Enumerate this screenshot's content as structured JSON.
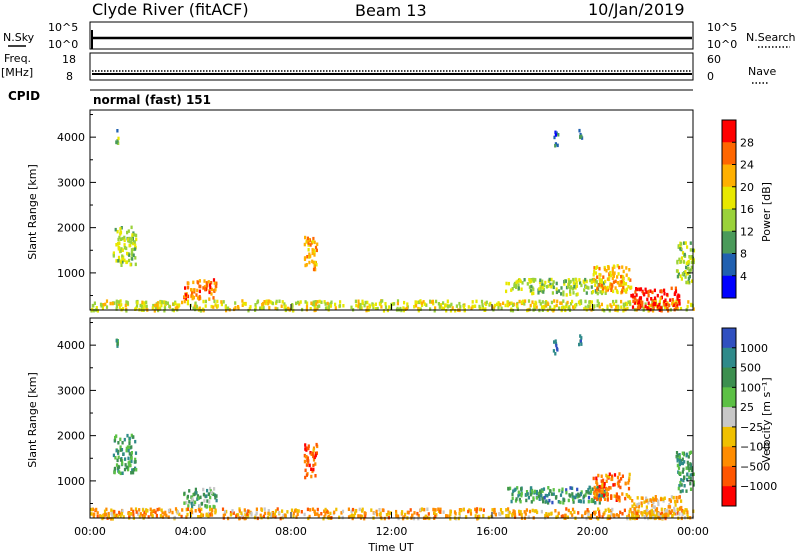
{
  "header": {
    "station": "Clyde River (fitACF)",
    "beam": "Beam 13",
    "date": "10/Jan/2019"
  },
  "status_panels": {
    "nsky_label": "N.Sky",
    "nsky_ticks": [
      "10^5",
      "10^0"
    ],
    "nsearch_label": "N.Search",
    "nsearch_ticks": [
      "10^5",
      "10^0"
    ],
    "freq_label": "Freq.",
    "freq_unit": "[MHz]",
    "freq_ticks": [
      "18",
      "8"
    ],
    "nave_label": "Nave",
    "nave_ticks": [
      "60",
      "0"
    ],
    "cpid_label": "CPID",
    "cpid_text": "normal (fast) 151"
  },
  "chart_data": {
    "type": "heatmap",
    "xlabel": "Time UT",
    "x_ticks": [
      "00:00",
      "04:00",
      "08:00",
      "12:00",
      "16:00",
      "20:00",
      "00:00"
    ],
    "x_tick_hours": [
      0,
      4,
      8,
      12,
      16,
      20,
      24
    ],
    "xlim_hours": [
      0,
      24
    ],
    "ylabel": "Slant Range [km]",
    "ylim": [
      180,
      4600
    ],
    "y_ticks": [
      1000,
      2000,
      3000,
      4000
    ],
    "panels": [
      {
        "name": "power",
        "colorbar_label": "Power [dB]",
        "colorbar_ticks": [
          "28",
          "24",
          "20",
          "16",
          "12",
          "8",
          "4"
        ],
        "colorbar_colors": [
          "#ff0000",
          "#ff6600",
          "#ffb000",
          "#e8e800",
          "#9ad23a",
          "#4a9a5a",
          "#2060b0",
          "#0000ff"
        ]
      },
      {
        "name": "velocity",
        "colorbar_label": "Velocity [m s⁻¹]",
        "colorbar_ticks": [
          "1000",
          "500",
          "100",
          "25",
          "−25",
          "−100",
          "−500",
          "−1000"
        ],
        "colorbar_colors": [
          "#3050c0",
          "#2f8a8a",
          "#3c8f4f",
          "#5cc045",
          "#c8c8c8",
          "#f0c000",
          "#ff8c00",
          "#ff5500",
          "#ff0000"
        ]
      }
    ],
    "echo_regions": [
      {
        "t0": 0.9,
        "t1": 1.8,
        "r0": 1200,
        "r1": 2050,
        "p": 0.45,
        "v": 0.75
      },
      {
        "t0": 3.7,
        "t1": 5.0,
        "r0": 450,
        "r1": 900,
        "p": 0.82,
        "v": 0.68
      },
      {
        "t0": 8.5,
        "t1": 9.0,
        "r0": 1100,
        "r1": 1850,
        "p": 0.75,
        "v": 0.15
      },
      {
        "t0": 0.0,
        "t1": 24.0,
        "r0": 200,
        "r1": 420,
        "p": 0.55,
        "v": 0.3
      },
      {
        "t0": 16.5,
        "t1": 20.5,
        "r0": 550,
        "r1": 900,
        "p": 0.45,
        "v": 0.78
      },
      {
        "t0": 20.0,
        "t1": 21.5,
        "r0": 600,
        "r1": 1200,
        "p": 0.7,
        "v": 0.2
      },
      {
        "t0": 21.5,
        "t1": 23.5,
        "r0": 200,
        "r1": 700,
        "p": 0.93,
        "v": 0.35
      },
      {
        "t0": 23.3,
        "t1": 24.0,
        "r0": 800,
        "r1": 1700,
        "p": 0.45,
        "v": 0.75
      },
      {
        "t0": 18.4,
        "t1": 18.6,
        "r0": 3800,
        "r1": 4150,
        "p": 0.1,
        "v": 0.9
      },
      {
        "t0": 19.4,
        "t1": 19.55,
        "r0": 4000,
        "r1": 4300,
        "p": 0.1,
        "v": 0.9
      },
      {
        "t0": 1.0,
        "t1": 1.1,
        "r0": 3900,
        "r1": 4200,
        "p": 0.35,
        "v": 0.75
      }
    ]
  }
}
